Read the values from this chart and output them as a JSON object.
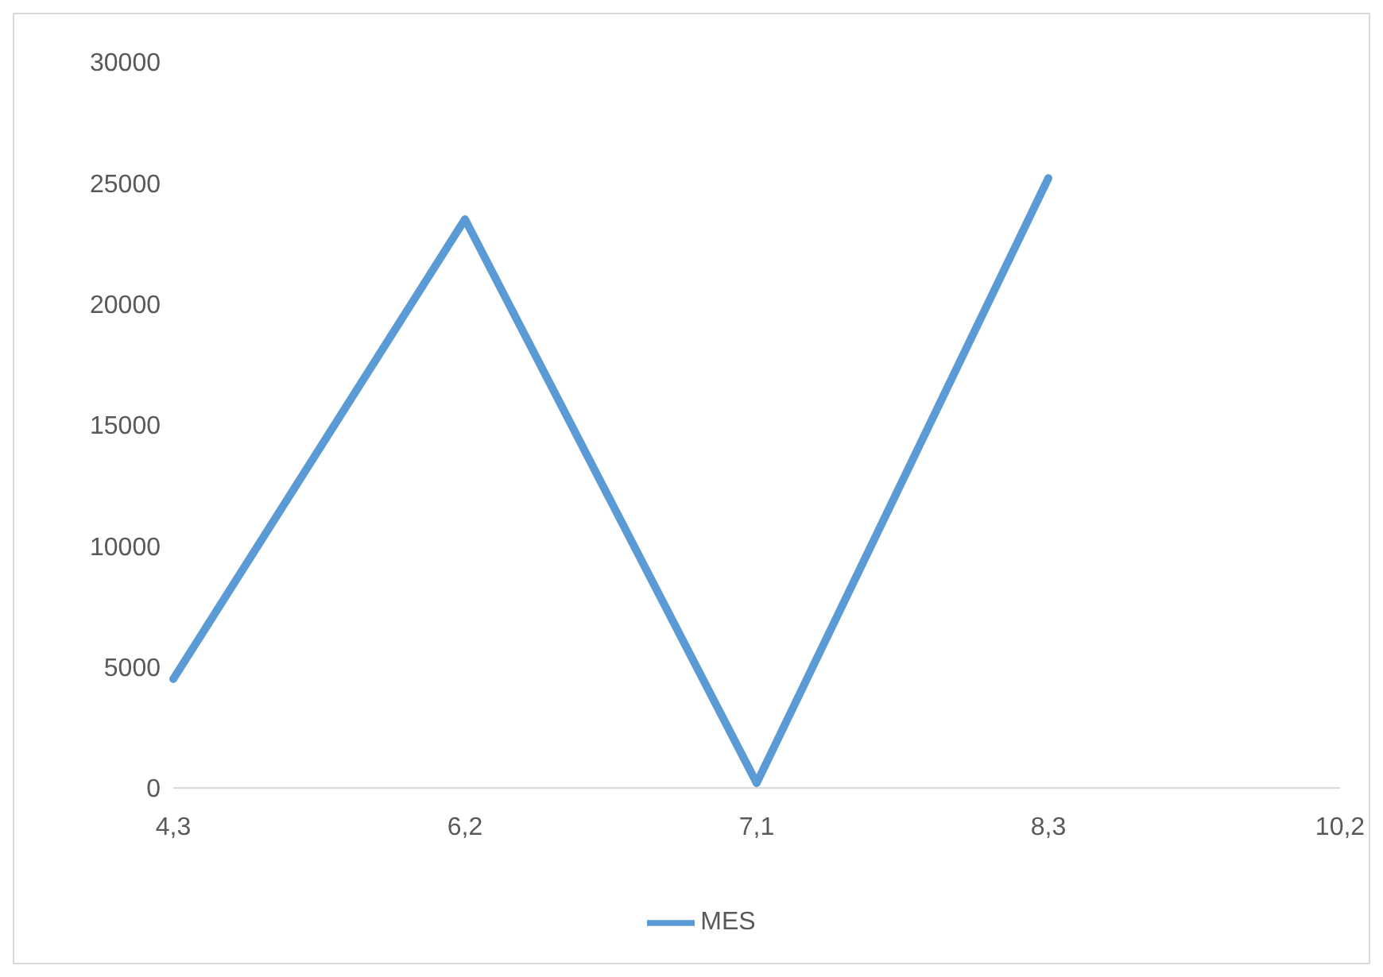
{
  "chart_data": {
    "type": "line",
    "categories": [
      "4,3",
      "6,2",
      "7,1",
      "8,3",
      "10,2"
    ],
    "series": [
      {
        "name": "MES",
        "color": "#5b9bd5",
        "values": [
          4500,
          23500,
          200,
          25200,
          null
        ]
      }
    ],
    "ylim": [
      0,
      30000
    ],
    "yticks": [
      0,
      5000,
      10000,
      15000,
      20000,
      25000,
      30000
    ],
    "grid": false,
    "legend": "bottom",
    "marker": "none",
    "line_style": "solid"
  }
}
